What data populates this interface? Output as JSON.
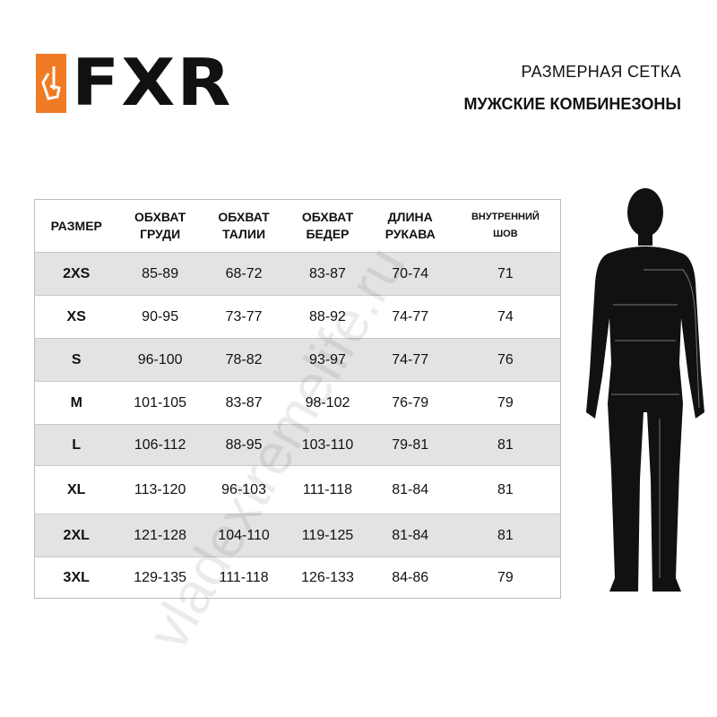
{
  "brand": {
    "logo_text": "FXR",
    "accent": "#f07b24"
  },
  "header": {
    "title": "РАЗМЕРНАЯ СЕТКА",
    "subtitle": "МУЖСКИЕ КОМБИНЕЗОНЫ"
  },
  "table": {
    "columns": [
      "РАЗМЕР",
      "ОБХВАТ ГРУДИ",
      "ОБХВАТ ТАЛИИ",
      "ОБХВАТ БЕДЕР",
      "ДЛИНА РУКАВА",
      "ВНУТРЕННИЙ ШОВ"
    ],
    "rows": [
      [
        "2XS",
        "85-89",
        "68-72",
        "83-87",
        "70-74",
        "71"
      ],
      [
        "XS",
        "90-95",
        "73-77",
        "88-92",
        "74-77",
        "74"
      ],
      [
        "S",
        "96-100",
        "78-82",
        "93-97",
        "74-77",
        "76"
      ],
      [
        "M",
        "101-105",
        "83-87",
        "98-102",
        "76-79",
        "79"
      ],
      [
        "L",
        "106-112",
        "88-95",
        "103-110",
        "79-81",
        "81"
      ],
      [
        "XL",
        "113-120",
        "96-103",
        "111-118",
        "81-84",
        "81"
      ],
      [
        "2XL",
        "121-128",
        "104-110",
        "119-125",
        "81-84",
        "81"
      ],
      [
        "3XL",
        "129-135",
        "111-118",
        "126-133",
        "84-86",
        "79"
      ]
    ]
  },
  "watermark": "vladextremelife.ru"
}
